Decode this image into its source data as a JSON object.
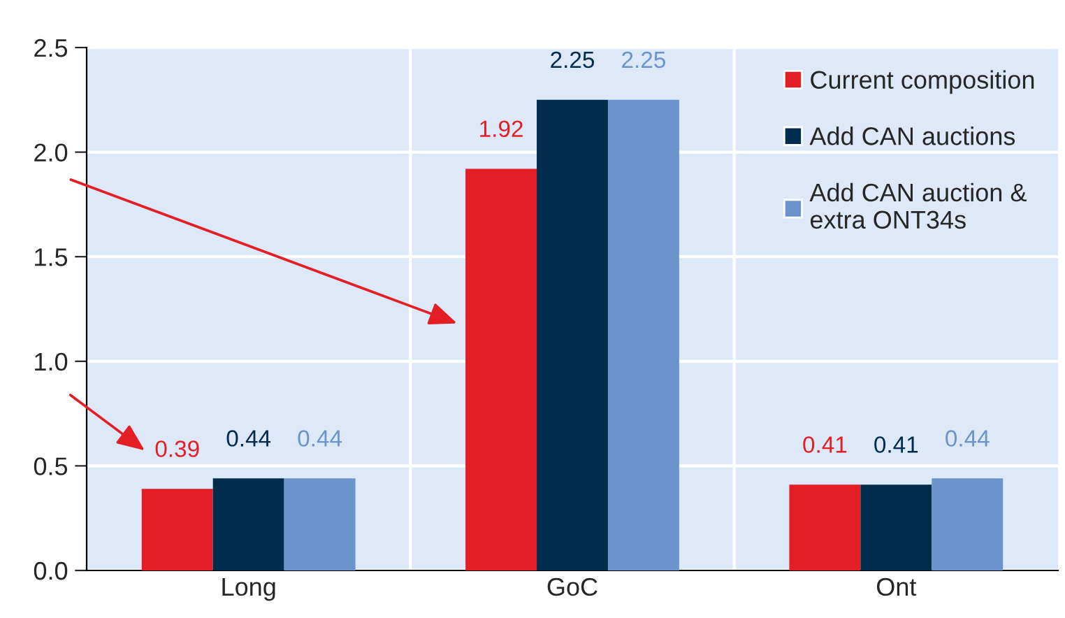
{
  "chart_data": {
    "type": "bar",
    "categories": [
      "Long",
      "GoC",
      "Ont"
    ],
    "series": [
      {
        "name": "Current composition",
        "color": "#e31e24",
        "values": [
          0.39,
          1.92,
          0.41
        ]
      },
      {
        "name": "Add CAN auctions",
        "color": "#002d4e",
        "values": [
          0.44,
          2.25,
          0.41
        ]
      },
      {
        "name": "Add CAN auction &\nextra ONT34s",
        "color": "#6d93cc",
        "values": [
          0.44,
          2.25,
          0.44
        ]
      }
    ],
    "ylim": [
      0,
      2.5
    ],
    "yticks": [
      {
        "value": 0,
        "label": "0.0"
      },
      0.5,
      {
        "value": 1,
        "label": "1.0"
      },
      1.5,
      {
        "value": 2,
        "label": "2.0"
      },
      2.5
    ],
    "grid": true,
    "legend": "top right",
    "data_labels": true
  }
}
